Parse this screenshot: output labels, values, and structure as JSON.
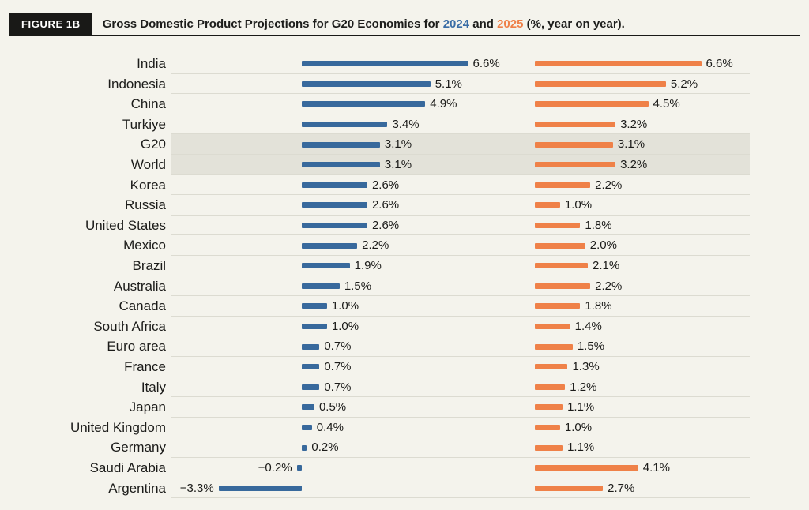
{
  "header": {
    "figure_label": "FIGURE 1B",
    "title_part1": "Gross Domestic Product Projections for G20 Economies for ",
    "year_2024": "2024",
    "title_part2": " and ",
    "year_2025": "2025",
    "title_part3": " (%, year on year)."
  },
  "colors": {
    "background": "#f4f3ec",
    "badge_black": "#191917",
    "series_2024_blue": "#38699c",
    "series_2025_orange": "#ef8148",
    "title_2024_blue": "#3a6da6",
    "title_2025_orange": "#ef8048",
    "highlight_band_gray": "#e3e2d9",
    "gridline_gray": "#dcdbd1"
  },
  "chart_data": {
    "type": "bar",
    "orientation": "horizontal",
    "title": "Gross Domestic Product Projections for G20 Economies for 2024 and 2025 (%, year on year).",
    "value_suffix": "%",
    "grid": true,
    "xlim": [
      -3.5,
      7
    ],
    "highlighted_categories": [
      "G20",
      "World"
    ],
    "categories": [
      "India",
      "Indonesia",
      "China",
      "Turkiye",
      "G20",
      "World",
      "Korea",
      "Russia",
      "United States",
      "Mexico",
      "Brazil",
      "Australia",
      "Canada",
      "South Africa",
      "Euro area",
      "France",
      "Italy",
      "Japan",
      "United Kingdom",
      "Germany",
      "Saudi Arabia",
      "Argentina"
    ],
    "series": [
      {
        "name": "2024",
        "color": "#38699c",
        "values": [
          6.6,
          5.1,
          4.9,
          3.4,
          3.1,
          3.1,
          2.6,
          2.6,
          2.6,
          2.2,
          1.9,
          1.5,
          1.0,
          1.0,
          0.7,
          0.7,
          0.7,
          0.5,
          0.4,
          0.2,
          -0.2,
          -3.3
        ]
      },
      {
        "name": "2025",
        "color": "#ef8148",
        "values": [
          6.6,
          5.2,
          4.5,
          3.2,
          3.1,
          3.2,
          2.2,
          1.0,
          1.8,
          2.0,
          2.1,
          2.2,
          1.8,
          1.4,
          1.5,
          1.3,
          1.2,
          1.1,
          1.0,
          1.1,
          4.1,
          2.7
        ]
      }
    ]
  }
}
